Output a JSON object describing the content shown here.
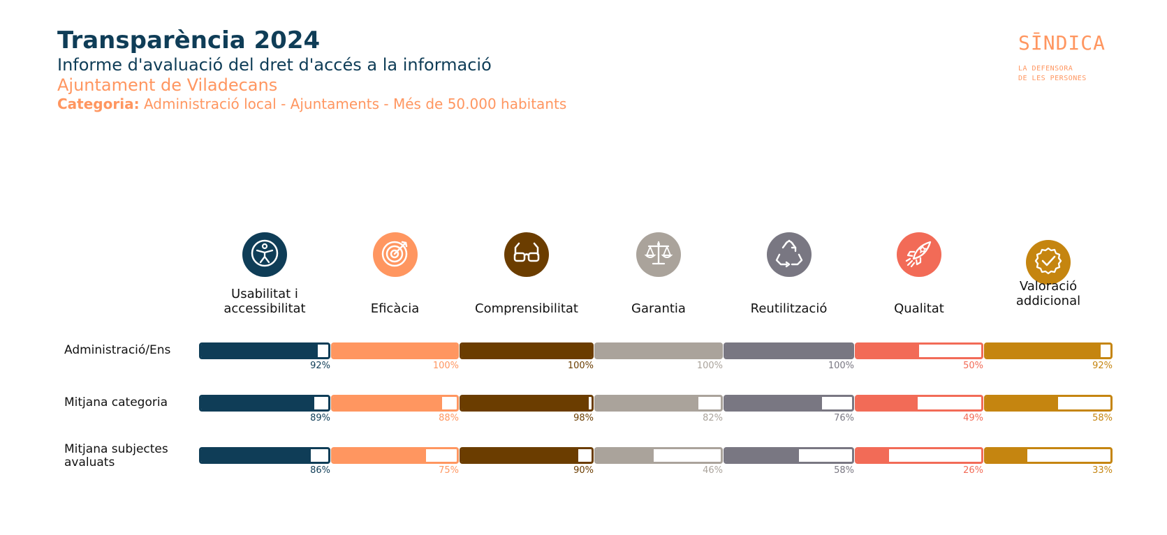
{
  "header": {
    "title": "Transparència 2024",
    "subtitle": "Informe d'avaluació del dret d'accés a la informació",
    "entity": "Ajuntament de Viladecans",
    "category_label": "Categoria:",
    "category_value": "Administració local - Ajuntaments - Més de 50.000 habitants"
  },
  "logo": {
    "name": "SĪNDICA",
    "line1": "LA DEFENSORA",
    "line2": "DE LES PERSONES"
  },
  "chart_data": {
    "type": "bar",
    "orientation": "horizontal",
    "unit": "%",
    "ylim": [
      0,
      100
    ],
    "categories": [
      "Usabilitat i accessibilitat",
      "Eficàcia",
      "Comprensibilitat",
      "Garantia",
      "Reutilització",
      "Qualitat",
      "Valoració addicional"
    ],
    "icons": [
      "accessibility-icon",
      "target-icon",
      "glasses-icon",
      "balance-scale-icon",
      "recycle-icon",
      "rocket-icon",
      "badge-check-icon"
    ],
    "colors": [
      "#0f3d57",
      "#ff9660",
      "#6b3d00",
      "#aaa39b",
      "#797782",
      "#f26b57",
      "#c58510"
    ],
    "series": [
      {
        "name": "Administració/Ens",
        "values": [
          92,
          100,
          100,
          100,
          100,
          50,
          92
        ],
        "labels": [
          "92%",
          "100%",
          "100%",
          "100%",
          "100%",
          "50%",
          "92%"
        ]
      },
      {
        "name": "Mitjana categoria",
        "values": [
          89,
          88,
          98,
          82,
          76,
          49,
          58
        ],
        "labels": [
          "89%",
          "88%",
          "98%",
          "82%",
          "76%",
          "49%",
          "58%"
        ]
      },
      {
        "name": "Mitjana subjectes avaluats",
        "values": [
          86,
          75,
          90,
          46,
          58,
          26,
          33
        ],
        "labels": [
          "86%",
          "75%",
          "90%",
          "46%",
          "58%",
          "26%",
          "33%"
        ]
      }
    ]
  }
}
